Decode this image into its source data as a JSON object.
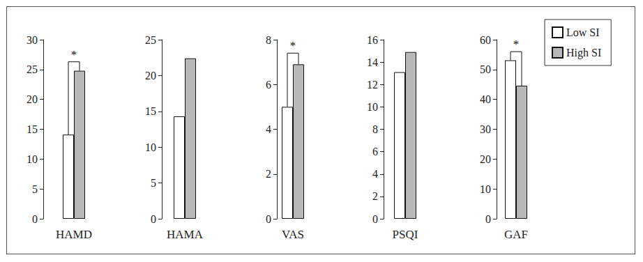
{
  "chart_data": [
    {
      "type": "bar",
      "categories": [
        "HAMD"
      ],
      "series": [
        {
          "name": "Low SI",
          "color": "#ffffff",
          "values": [
            14.1
          ]
        },
        {
          "name": "High SI",
          "color": "#b8b8b8",
          "values": [
            24.8
          ]
        }
      ],
      "ylim": [
        0,
        30
      ],
      "yticks": [
        0,
        5,
        10,
        15,
        20,
        25,
        30
      ],
      "grid": false,
      "annotations": [
        {
          "text": "*",
          "y": 26.3
        }
      ]
    },
    {
      "type": "bar",
      "categories": [
        "HAMA"
      ],
      "series": [
        {
          "name": "Low SI",
          "color": "#ffffff",
          "values": [
            14.3
          ]
        },
        {
          "name": "High SI",
          "color": "#b8b8b8",
          "values": [
            22.4
          ]
        }
      ],
      "ylim": [
        0,
        25
      ],
      "yticks": [
        0,
        5,
        10,
        15,
        20,
        25
      ],
      "grid": false
    },
    {
      "type": "bar",
      "categories": [
        "VAS"
      ],
      "series": [
        {
          "name": "Low SI",
          "color": "#ffffff",
          "values": [
            5.0
          ]
        },
        {
          "name": "High SI",
          "color": "#b8b8b8",
          "values": [
            6.9
          ]
        }
      ],
      "ylim": [
        0,
        8
      ],
      "yticks": [
        0,
        2,
        4,
        6,
        8
      ],
      "grid": false,
      "annotations": [
        {
          "text": "*",
          "y": 7.4
        }
      ]
    },
    {
      "type": "bar",
      "categories": [
        "PSQI"
      ],
      "series": [
        {
          "name": "Low SI",
          "color": "#ffffff",
          "values": [
            13.1
          ]
        },
        {
          "name": "High SI",
          "color": "#b8b8b8",
          "values": [
            14.9
          ]
        }
      ],
      "ylim": [
        0,
        16
      ],
      "yticks": [
        0,
        2,
        4,
        6,
        8,
        10,
        12,
        14,
        16
      ],
      "grid": false
    },
    {
      "type": "bar",
      "categories": [
        "GAF"
      ],
      "series": [
        {
          "name": "Low SI",
          "color": "#ffffff",
          "values": [
            53.1
          ]
        },
        {
          "name": "High SI",
          "color": "#b8b8b8",
          "values": [
            44.6
          ]
        }
      ],
      "ylim": [
        0,
        60
      ],
      "yticks": [
        0,
        10,
        20,
        30,
        40,
        50,
        60
      ],
      "grid": false,
      "annotations": [
        {
          "text": "*",
          "y": 56
        }
      ],
      "legend": "right"
    }
  ]
}
